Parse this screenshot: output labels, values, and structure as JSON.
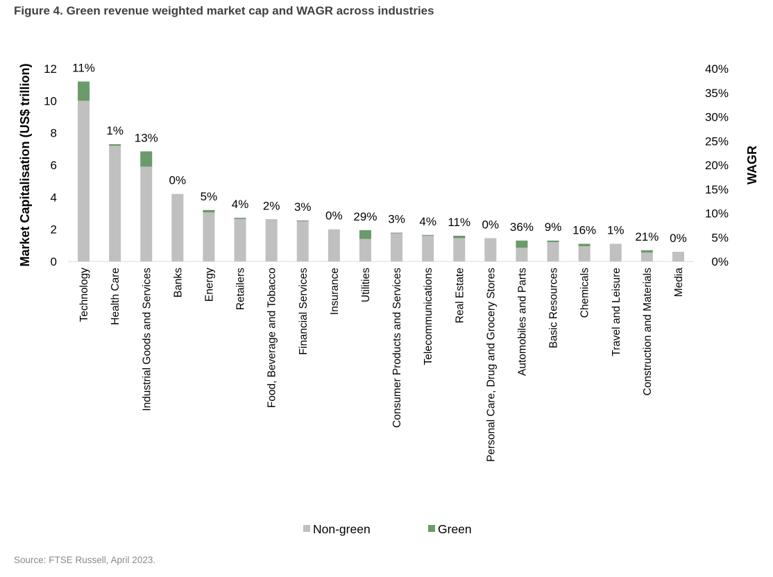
{
  "figure_title": "Figure 4. Green revenue weighted market cap and WAGR across industries",
  "source": "Source: FTSE Russell, April 2023.",
  "chart_data": {
    "type": "bar",
    "stacked": true,
    "title": "Figure 4. Green revenue weighted market cap and WAGR across industries",
    "ylabel": "Market Capitalisation (US$ trillion)",
    "y2label": "WAGR",
    "ylim": [
      0,
      12
    ],
    "y2lim": [
      0,
      0.4
    ],
    "y_ticks": [
      "0",
      "2",
      "4",
      "6",
      "8",
      "10",
      "12"
    ],
    "y2_ticks": [
      "0%",
      "5%",
      "10%",
      "15%",
      "20%",
      "25%",
      "30%",
      "35%",
      "40%"
    ],
    "grid": false,
    "legend_position": "bottom",
    "categories": [
      "Technology",
      "Health Care",
      "Industrial Goods and Services",
      "Banks",
      "Energy",
      "Retailers",
      "Food, Beverage and Tobacco",
      "Financial Services",
      "Insurance",
      "Utilities",
      "Consumer Products and Services",
      "Telecommunications",
      "Real Estate",
      "Personal Care, Drug and Grocery Stores",
      "Automobiles and Parts",
      "Basic Resources",
      "Chemicals",
      "Travel and Leisure",
      "Construction and Materials",
      "Media"
    ],
    "series": [
      {
        "name": "Non-green",
        "color": "#c0c0c0",
        "values": [
          10.0,
          7.2,
          5.9,
          4.2,
          3.05,
          2.65,
          2.6,
          2.5,
          2.0,
          1.4,
          1.75,
          1.6,
          1.45,
          1.45,
          0.85,
          1.2,
          0.95,
          1.1,
          0.55,
          0.6
        ]
      },
      {
        "name": "Green",
        "color": "#6b9a6b",
        "values": [
          1.2,
          0.1,
          0.95,
          0.0,
          0.15,
          0.07,
          0.02,
          0.05,
          0.0,
          0.55,
          0.04,
          0.05,
          0.15,
          0.0,
          0.45,
          0.1,
          0.15,
          0.0,
          0.15,
          0.0
        ]
      }
    ],
    "wagr_labels": [
      "11%",
      "1%",
      "13%",
      "0%",
      "5%",
      "4%",
      "2%",
      "3%",
      "0%",
      "29%",
      "3%",
      "4%",
      "11%",
      "0%",
      "36%",
      "9%",
      "16%",
      "1%",
      "21%",
      "0%"
    ]
  }
}
